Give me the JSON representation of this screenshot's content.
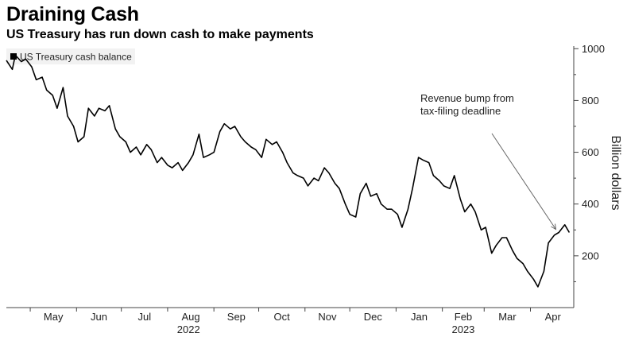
{
  "title": "Draining Cash",
  "subtitle": "US Treasury has run down cash to make payments",
  "chart_data": {
    "type": "line",
    "ylabel": "Billion dollars",
    "ylim": [
      0,
      1010
    ],
    "yticks": [
      200,
      400,
      600,
      800,
      1000
    ],
    "grid": false,
    "legend_position": "top-left",
    "line_color": "#000000",
    "x_start": "2022-04-15",
    "x_end": "2023-04-30",
    "month_ticks": [
      {
        "label": "May",
        "date": "2022-05-01"
      },
      {
        "label": "Jun",
        "date": "2022-06-01"
      },
      {
        "label": "Jul",
        "date": "2022-07-01"
      },
      {
        "label": "Aug",
        "date": "2022-08-01"
      },
      {
        "label": "Sep",
        "date": "2022-09-01"
      },
      {
        "label": "Oct",
        "date": "2022-10-01"
      },
      {
        "label": "Nov",
        "date": "2022-11-01"
      },
      {
        "label": "Dec",
        "date": "2022-12-01"
      },
      {
        "label": "Jan",
        "date": "2023-01-01"
      },
      {
        "label": "Feb",
        "date": "2023-02-01"
      },
      {
        "label": "Mar",
        "date": "2023-03-01"
      },
      {
        "label": "Apr",
        "date": "2023-04-01"
      }
    ],
    "year_labels": [
      {
        "label": "2022",
        "date": "2022-08-15"
      },
      {
        "label": "2023",
        "date": "2023-02-15"
      }
    ],
    "annotation": {
      "lines": [
        "Revenue bump from",
        "tax-filing deadline"
      ],
      "target": {
        "date": "2023-04-18",
        "value": 290
      }
    },
    "series": [
      {
        "name": "US Treasury cash balance",
        "x": [
          "2022-04-15",
          "2022-04-19",
          "2022-04-21",
          "2022-04-25",
          "2022-04-28",
          "2022-05-02",
          "2022-05-05",
          "2022-05-09",
          "2022-05-12",
          "2022-05-16",
          "2022-05-19",
          "2022-05-23",
          "2022-05-26",
          "2022-05-30",
          "2022-06-02",
          "2022-06-06",
          "2022-06-09",
          "2022-06-13",
          "2022-06-16",
          "2022-06-20",
          "2022-06-23",
          "2022-06-27",
          "2022-06-30",
          "2022-07-04",
          "2022-07-07",
          "2022-07-11",
          "2022-07-14",
          "2022-07-18",
          "2022-07-21",
          "2022-07-25",
          "2022-07-28",
          "2022-08-01",
          "2022-08-04",
          "2022-08-08",
          "2022-08-11",
          "2022-08-15",
          "2022-08-18",
          "2022-08-22",
          "2022-08-25",
          "2022-08-29",
          "2022-09-01",
          "2022-09-05",
          "2022-09-08",
          "2022-09-12",
          "2022-09-15",
          "2022-09-19",
          "2022-09-22",
          "2022-09-26",
          "2022-09-29",
          "2022-10-03",
          "2022-10-06",
          "2022-10-10",
          "2022-10-13",
          "2022-10-17",
          "2022-10-20",
          "2022-10-24",
          "2022-10-27",
          "2022-10-31",
          "2022-11-03",
          "2022-11-07",
          "2022-11-10",
          "2022-11-14",
          "2022-11-17",
          "2022-11-21",
          "2022-11-24",
          "2022-11-28",
          "2022-12-01",
          "2022-12-05",
          "2022-12-08",
          "2022-12-12",
          "2022-12-15",
          "2022-12-19",
          "2022-12-22",
          "2022-12-26",
          "2022-12-29",
          "2023-01-02",
          "2023-01-05",
          "2023-01-09",
          "2023-01-12",
          "2023-01-16",
          "2023-01-19",
          "2023-01-23",
          "2023-01-26",
          "2023-01-30",
          "2023-02-02",
          "2023-02-06",
          "2023-02-09",
          "2023-02-13",
          "2023-02-16",
          "2023-02-20",
          "2023-02-23",
          "2023-02-27",
          "2023-03-02",
          "2023-03-06",
          "2023-03-09",
          "2023-03-13",
          "2023-03-16",
          "2023-03-20",
          "2023-03-23",
          "2023-03-27",
          "2023-03-30",
          "2023-04-03",
          "2023-04-06",
          "2023-04-10",
          "2023-04-13",
          "2023-04-17",
          "2023-04-20",
          "2023-04-24",
          "2023-04-27"
        ],
        "y": [
          955,
          920,
          975,
          950,
          960,
          930,
          880,
          890,
          840,
          820,
          770,
          850,
          740,
          700,
          640,
          660,
          770,
          740,
          770,
          760,
          780,
          690,
          660,
          640,
          600,
          620,
          590,
          630,
          610,
          560,
          580,
          550,
          540,
          560,
          530,
          560,
          590,
          670,
          580,
          590,
          600,
          680,
          710,
          690,
          700,
          660,
          640,
          620,
          610,
          580,
          650,
          630,
          640,
          600,
          560,
          520,
          510,
          500,
          470,
          500,
          490,
          540,
          520,
          480,
          460,
          400,
          360,
          350,
          440,
          480,
          430,
          440,
          400,
          380,
          380,
          360,
          310,
          380,
          460,
          580,
          570,
          560,
          510,
          490,
          470,
          460,
          510,
          420,
          370,
          400,
          370,
          300,
          310,
          210,
          240,
          270,
          270,
          220,
          190,
          170,
          140,
          110,
          80,
          140,
          250,
          280,
          290,
          320,
          290
        ]
      }
    ]
  }
}
